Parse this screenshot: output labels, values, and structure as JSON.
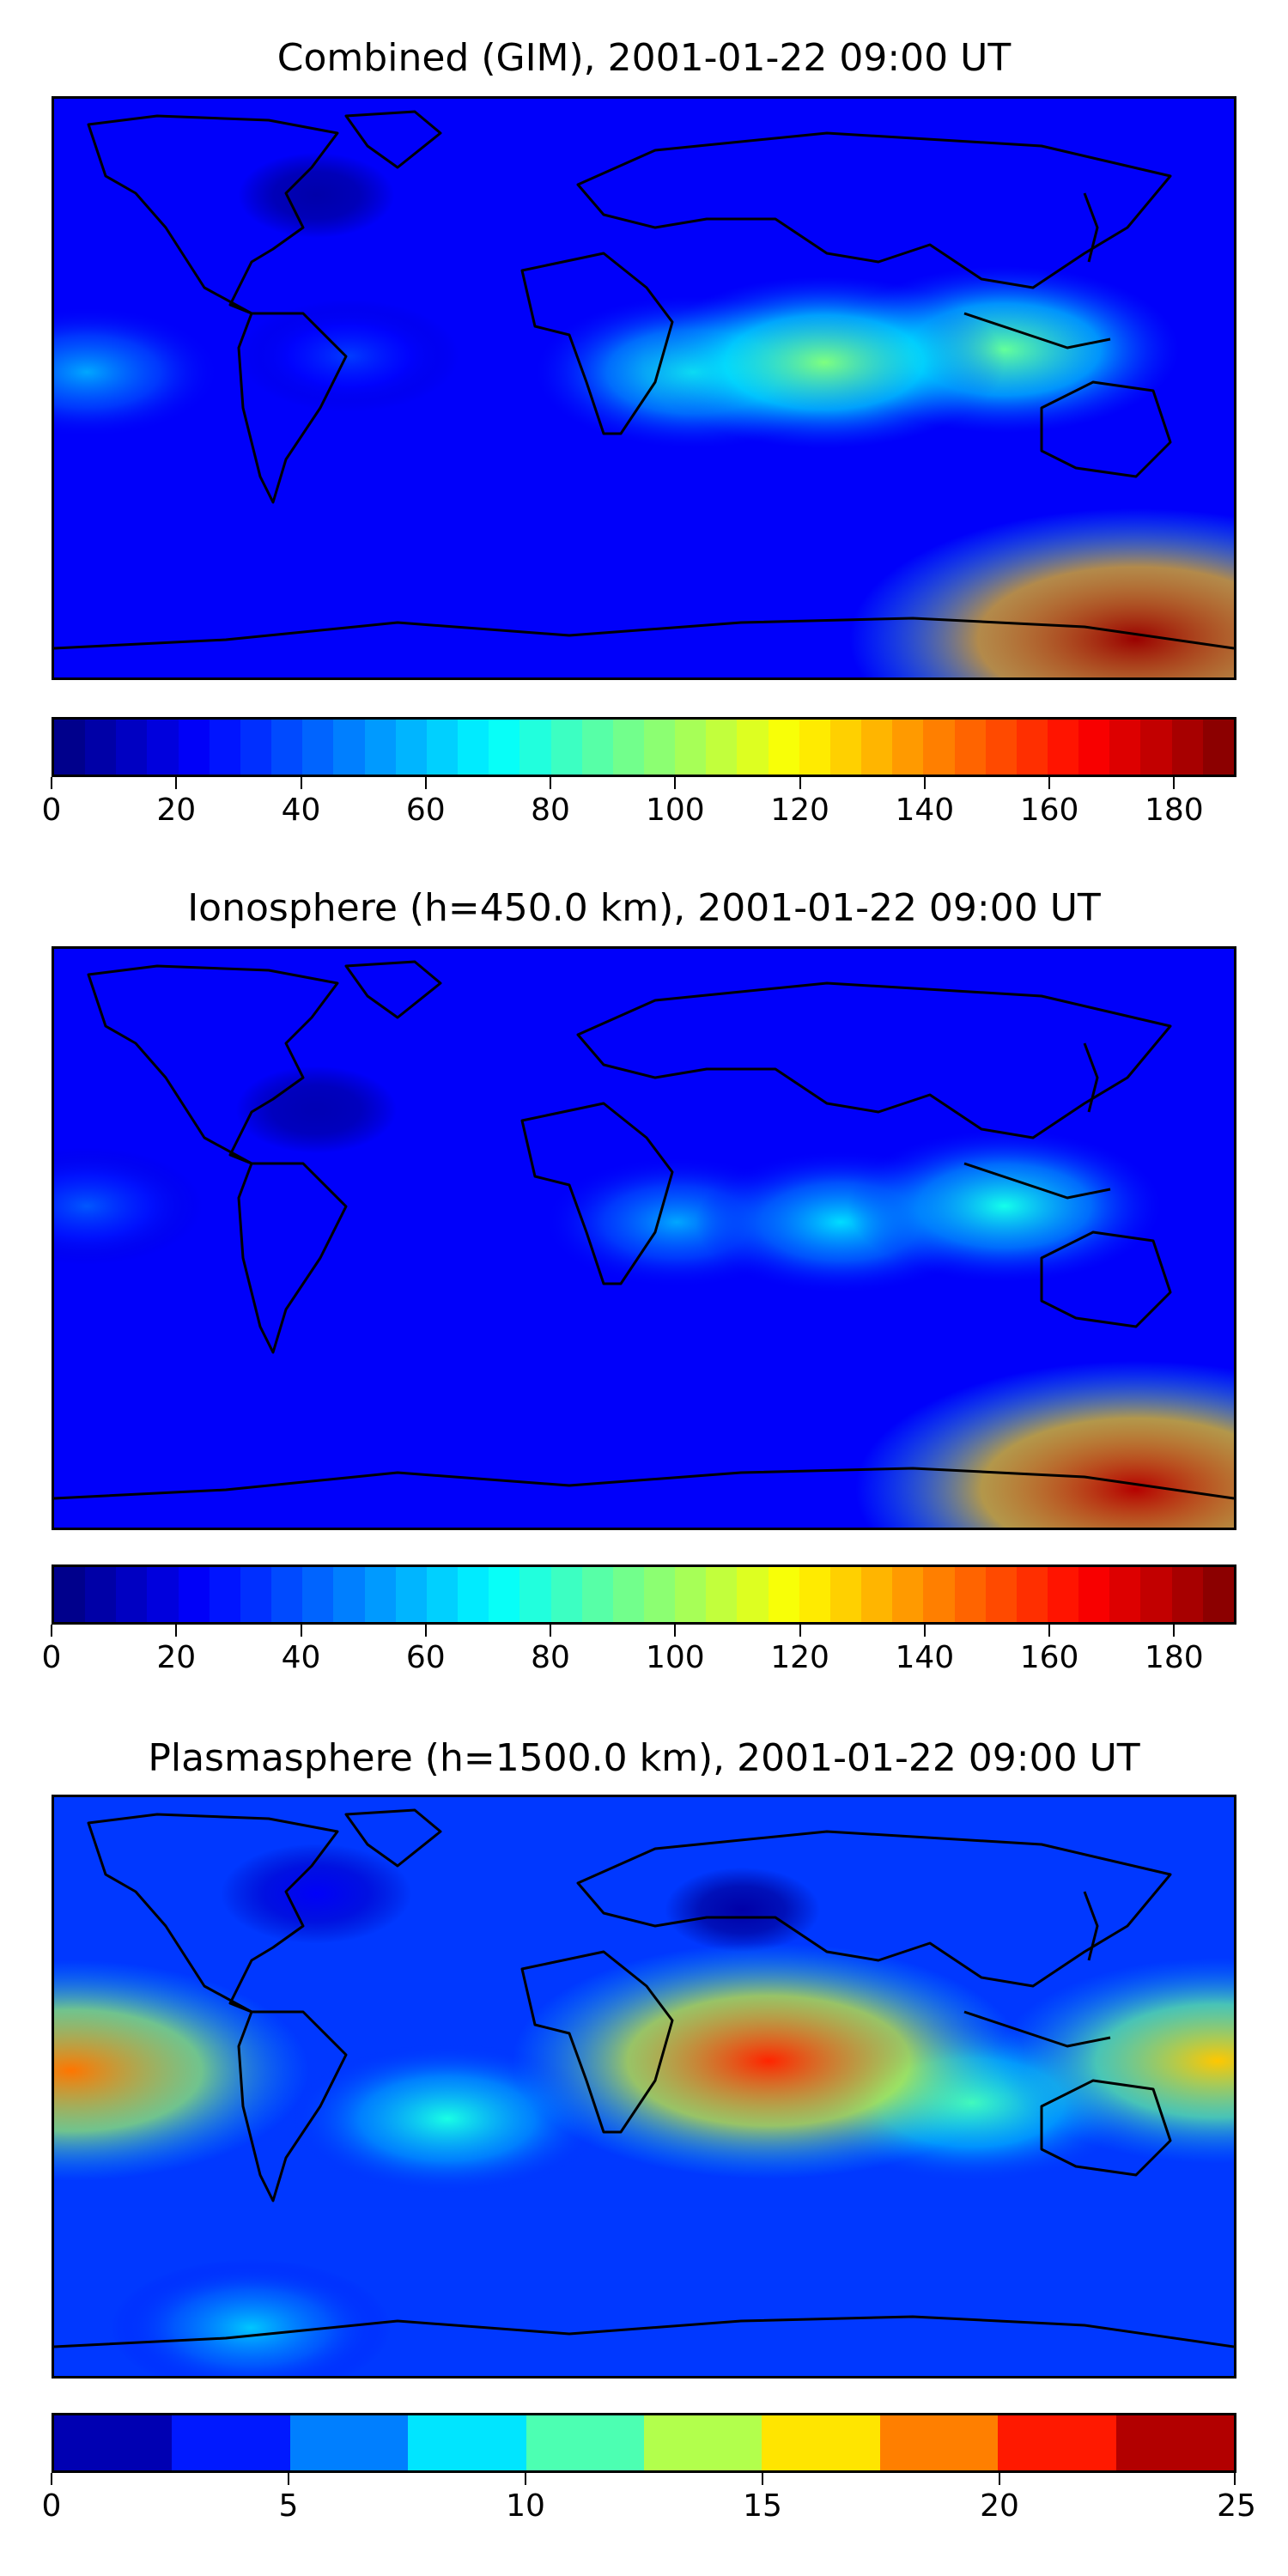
{
  "chart_data": [
    {
      "type": "heatmap",
      "title": "Combined (GIM), 2001-01-22 09:00 UT",
      "colorbar": {
        "min": 0,
        "max": 190,
        "step": 5,
        "ticks": [
          0,
          20,
          40,
          60,
          80,
          100,
          120,
          140,
          160,
          180
        ]
      },
      "features": [
        {
          "lon": 150,
          "lat": -78,
          "value": 185
        },
        {
          "lon": 55,
          "lat": 8,
          "value": 95
        },
        {
          "lon": 110,
          "lat": 12,
          "value": 90
        },
        {
          "lon": 15,
          "lat": 5,
          "value": 75
        },
        {
          "lon": -170,
          "lat": 5,
          "value": 55
        },
        {
          "lon": -90,
          "lat": 10,
          "value": 35
        },
        {
          "lon": -100,
          "lat": 60,
          "value": 8
        }
      ]
    },
    {
      "type": "heatmap",
      "title": "Ionosphere  (h=450.0 km), 2001-01-22 09:00 UT",
      "colorbar": {
        "min": 0,
        "max": 190,
        "step": 5,
        "ticks": [
          0,
          20,
          40,
          60,
          80,
          100,
          120,
          140,
          160,
          180
        ]
      },
      "features": [
        {
          "lon": 150,
          "lat": -78,
          "value": 180
        },
        {
          "lon": 110,
          "lat": 10,
          "value": 75
        },
        {
          "lon": 60,
          "lat": 5,
          "value": 65
        },
        {
          "lon": 10,
          "lat": 5,
          "value": 55
        },
        {
          "lon": -170,
          "lat": 10,
          "value": 40
        },
        {
          "lon": -100,
          "lat": 40,
          "value": 10
        }
      ]
    },
    {
      "type": "heatmap",
      "title": "Plasmasphere (h=1500.0 km), 2001-01-22 09:00 UT",
      "colorbar": {
        "min": 0,
        "max": 25,
        "step": 2.5,
        "ticks": [
          0,
          5,
          10,
          15,
          20,
          25
        ]
      },
      "features": [
        {
          "lon": 38,
          "lat": 8,
          "value": 21
        },
        {
          "lon": -175,
          "lat": 5,
          "value": 19
        },
        {
          "lon": 175,
          "lat": 8,
          "value": 17
        },
        {
          "lon": -60,
          "lat": -10,
          "value": 10
        },
        {
          "lon": 100,
          "lat": -5,
          "value": 11
        },
        {
          "lon": -120,
          "lat": -75,
          "value": 8
        },
        {
          "lon": 30,
          "lat": 55,
          "value": 1
        },
        {
          "lon": -100,
          "lat": 60,
          "value": 3
        }
      ]
    }
  ],
  "colors": {
    "jet": [
      "#00007f",
      "#0000ff",
      "#007fff",
      "#00ffff",
      "#7fff7f",
      "#ffff00",
      "#ff7f00",
      "#ff0000",
      "#7f0000"
    ],
    "coastline": "#000000"
  }
}
